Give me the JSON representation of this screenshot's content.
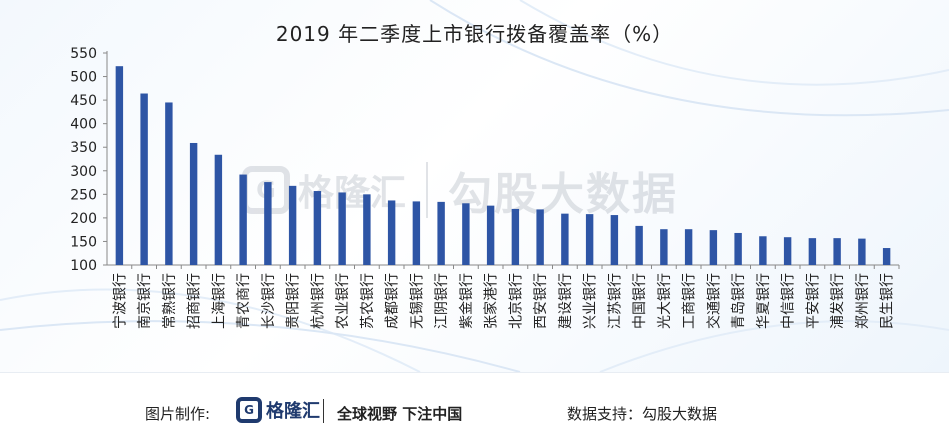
{
  "chart_data": {
    "type": "bar",
    "title": "2019 年二季度上市银行拨备覆盖率（%）",
    "xlabel": "",
    "ylabel": "",
    "ylim": [
      100,
      550
    ],
    "yticks": [
      100,
      150,
      200,
      250,
      300,
      350,
      400,
      450,
      500,
      550
    ],
    "grid": false,
    "bar_color": "#2e55a5",
    "categories": [
      "宁波银行",
      "南京银行",
      "常熟银行",
      "招商银行",
      "上海银行",
      "青农商行",
      "长沙银行",
      "贵阳银行",
      "杭州银行",
      "农业银行",
      "苏农银行",
      "成都银行",
      "无锡银行",
      "江阴银行",
      "紫金银行",
      "张家港行",
      "北京银行",
      "西安银行",
      "建设银行",
      "兴业银行",
      "江苏银行",
      "中国银行",
      "光大银行",
      "工商银行",
      "交通银行",
      "青岛银行",
      "华夏银行",
      "中信银行",
      "平安银行",
      "浦发银行",
      "郑州银行",
      "民生银行"
    ],
    "values": [
      522,
      464,
      445,
      359,
      334,
      292,
      276,
      268,
      257,
      254,
      250,
      237,
      235,
      234,
      231,
      226,
      219,
      218,
      209,
      208,
      206,
      183,
      176,
      176,
      174,
      168,
      161,
      159,
      157,
      157,
      156,
      136
    ]
  },
  "watermark": {
    "logo_letter": "G",
    "brand": "格隆汇",
    "text": "勾股大数据"
  },
  "footer": {
    "made_label": "图片制作:",
    "logo_letter": "G",
    "brand": "格隆汇",
    "slogan": "全球视野 下注中国",
    "source": "数据支持：勾股大数据"
  }
}
